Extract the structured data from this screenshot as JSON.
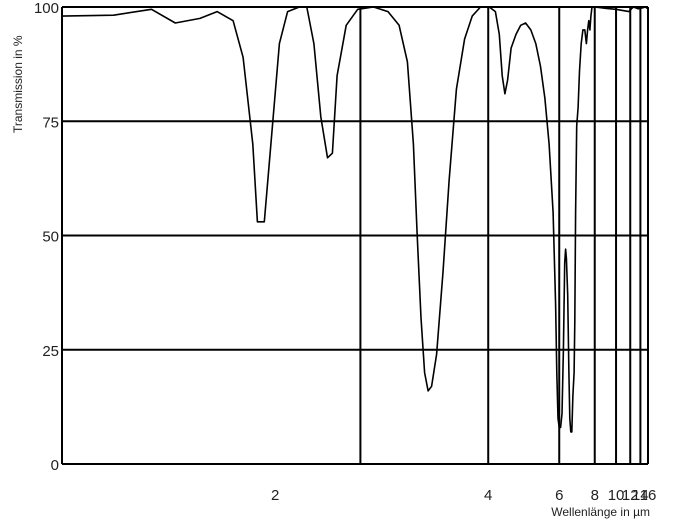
{
  "chart_data": {
    "type": "line",
    "title": "",
    "xlabel": "Wellenlänge in µm",
    "ylabel": "Transmission in %",
    "grid": true,
    "legend": "none",
    "x_axis": {
      "scale": "reciprocal (linear in wavenumber)",
      "ticks": [
        2,
        4,
        6,
        8,
        10,
        12,
        14,
        16
      ],
      "range": [
        1.333,
        16
      ]
    },
    "y_axis": {
      "ticks": [
        0,
        25,
        50,
        75,
        100
      ],
      "range": [
        0,
        100
      ]
    },
    "series": [
      {
        "color": "#000000",
        "points": [
          [
            1.333,
            98
          ],
          [
            1.45,
            98.2
          ],
          [
            1.55,
            99.5
          ],
          [
            1.62,
            96.5
          ],
          [
            1.7,
            97.5
          ],
          [
            1.76,
            99
          ],
          [
            1.82,
            97
          ],
          [
            1.86,
            89
          ],
          [
            1.9,
            70
          ],
          [
            1.92,
            53
          ],
          [
            1.95,
            53
          ],
          [
            1.98,
            70
          ],
          [
            2.02,
            92
          ],
          [
            2.06,
            99
          ],
          [
            2.12,
            100
          ],
          [
            2.16,
            100
          ],
          [
            2.2,
            92
          ],
          [
            2.24,
            76
          ],
          [
            2.28,
            67
          ],
          [
            2.31,
            68
          ],
          [
            2.34,
            85
          ],
          [
            2.4,
            96
          ],
          [
            2.48,
            99.5
          ],
          [
            2.6,
            100
          ],
          [
            2.72,
            99
          ],
          [
            2.82,
            96
          ],
          [
            2.9,
            88
          ],
          [
            2.96,
            70
          ],
          [
            3.0,
            50
          ],
          [
            3.04,
            32
          ],
          [
            3.08,
            20
          ],
          [
            3.12,
            16
          ],
          [
            3.16,
            17
          ],
          [
            3.22,
            24
          ],
          [
            3.3,
            42
          ],
          [
            3.38,
            62
          ],
          [
            3.48,
            82
          ],
          [
            3.6,
            93
          ],
          [
            3.72,
            98
          ],
          [
            3.86,
            100
          ],
          [
            4.02,
            100
          ],
          [
            4.14,
            99
          ],
          [
            4.22,
            94
          ],
          [
            4.28,
            85
          ],
          [
            4.34,
            81
          ],
          [
            4.4,
            84
          ],
          [
            4.48,
            91
          ],
          [
            4.6,
            94
          ],
          [
            4.72,
            96
          ],
          [
            4.85,
            96.5
          ],
          [
            5.0,
            95
          ],
          [
            5.15,
            92
          ],
          [
            5.3,
            87
          ],
          [
            5.45,
            80
          ],
          [
            5.6,
            70
          ],
          [
            5.75,
            55
          ],
          [
            5.85,
            35
          ],
          [
            5.9,
            20
          ],
          [
            5.95,
            10
          ],
          [
            6.0,
            8
          ],
          [
            6.06,
            8
          ],
          [
            6.12,
            11
          ],
          [
            6.18,
            25
          ],
          [
            6.24,
            44
          ],
          [
            6.28,
            47
          ],
          [
            6.32,
            45
          ],
          [
            6.38,
            37
          ],
          [
            6.44,
            20
          ],
          [
            6.48,
            10
          ],
          [
            6.53,
            7
          ],
          [
            6.58,
            7
          ],
          [
            6.64,
            15
          ],
          [
            6.7,
            20
          ],
          [
            6.74,
            31
          ],
          [
            6.78,
            55
          ],
          [
            6.84,
            74
          ],
          [
            6.92,
            78
          ],
          [
            7.0,
            86
          ],
          [
            7.1,
            92
          ],
          [
            7.2,
            95
          ],
          [
            7.32,
            95
          ],
          [
            7.42,
            92
          ],
          [
            7.5,
            95
          ],
          [
            7.58,
            97
          ],
          [
            7.65,
            95
          ],
          [
            7.72,
            98
          ],
          [
            7.8,
            100
          ],
          [
            8.0,
            100
          ],
          [
            9,
            99.7
          ],
          [
            10,
            99.5
          ],
          [
            11,
            99.2
          ],
          [
            11.8,
            99
          ],
          [
            12.2,
            99.6
          ],
          [
            12.6,
            100
          ],
          [
            13.5,
            99.6
          ],
          [
            14.5,
            99.8
          ],
          [
            15.2,
            100
          ],
          [
            16,
            99.6
          ]
        ]
      }
    ]
  }
}
